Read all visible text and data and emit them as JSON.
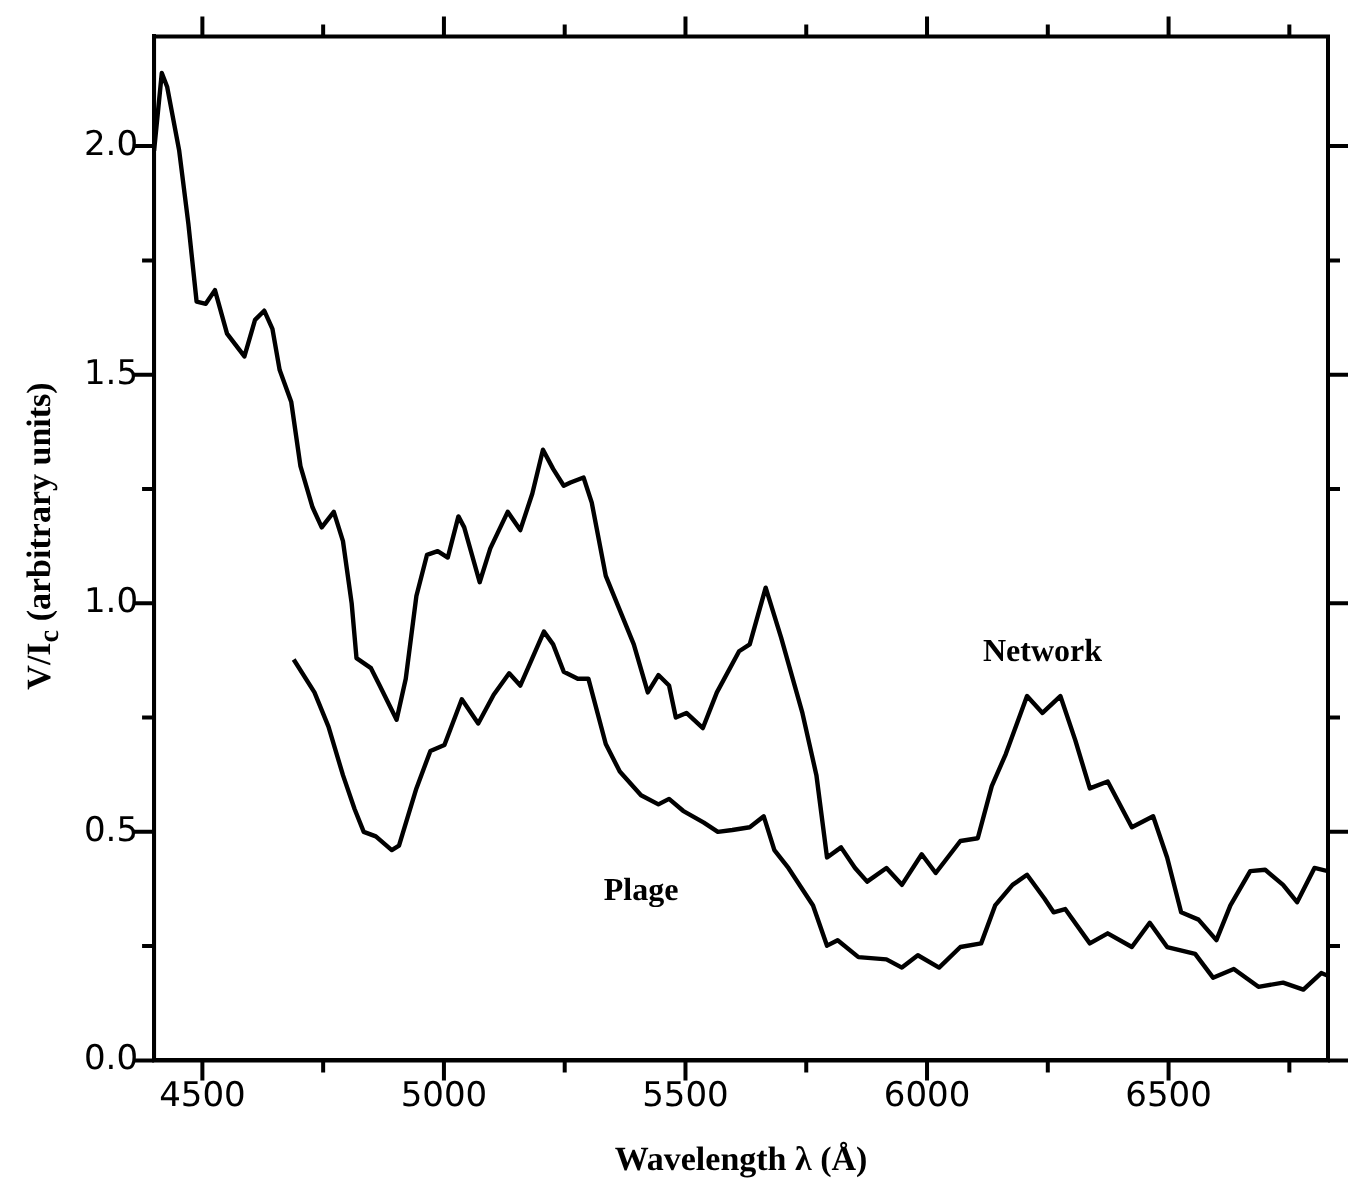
{
  "chart_data": {
    "type": "line",
    "xlabel": "Wavelength λ (Å)",
    "ylabel": "V/I$_{c}$ (arbitrary units)",
    "xlim": [
      4400,
      6830
    ],
    "ylim": [
      0,
      2.24
    ],
    "xticks": [
      4500,
      {
        "value": 4750,
        "label": null
      },
      5000,
      {
        "value": 5250,
        "label": null
      },
      5500,
      {
        "value": 5750,
        "label": null
      },
      6000,
      {
        "value": 6250,
        "label": null
      },
      6500,
      {
        "value": 6750,
        "label": null
      }
    ],
    "yticks": [
      {
        "value": 0,
        "label": "0.0"
      },
      {
        "value": 0.25,
        "label": null
      },
      {
        "value": 0.5,
        "label": "0.5"
      },
      {
        "value": 0.75,
        "label": null
      },
      {
        "value": 1,
        "label": "1.0"
      },
      {
        "value": 1.25,
        "label": null
      },
      {
        "value": 1.5,
        "label": "1.5"
      },
      {
        "value": 1.75,
        "label": null
      },
      {
        "value": 2,
        "label": "2.0"
      }
    ],
    "grid": false,
    "legend": false,
    "marker": "none",
    "line_style": "solid",
    "series": [
      {
        "name": "Network",
        "color": "#000000",
        "x": [
          4400,
          4416,
          4427,
          4452,
          4471,
          4488,
          4507,
          4526,
          4551,
          4587,
          4609,
          4628,
          4645,
          4660,
          4684,
          4703,
          4728,
          4747,
          4772,
          4791,
          4809,
          4819,
          4849,
          4867,
          4902,
          4921,
          4943,
          4965,
          4987,
          5008,
          5030,
          5042,
          5074,
          5096,
          5114,
          5132,
          5158,
          5183,
          5205,
          5226,
          5248,
          5262,
          5289,
          5306,
          5335,
          5364,
          5393,
          5422,
          5444,
          5466,
          5480,
          5502,
          5536,
          5565,
          5611,
          5633,
          5666,
          5698,
          5742,
          5771,
          5793,
          5822,
          5851,
          5876,
          5916,
          5948,
          5989,
          6018,
          6069,
          6105,
          6134,
          6163,
          6207,
          6239,
          6276,
          6307,
          6337,
          6374,
          6424,
          6468,
          6497,
          6526,
          6562,
          6599,
          6628,
          6669,
          6700,
          6737,
          6766,
          6802,
          6830
        ],
        "values": [
          1.99,
          2.16,
          2.13,
          1.99,
          1.83,
          1.66,
          1.655,
          1.685,
          1.59,
          1.54,
          1.62,
          1.64,
          1.6,
          1.51,
          1.44,
          1.3,
          1.21,
          1.166,
          1.2,
          1.136,
          1.0,
          0.88,
          0.858,
          0.82,
          0.745,
          0.835,
          1.016,
          1.106,
          1.114,
          1.1,
          1.19,
          1.166,
          1.046,
          1.12,
          1.16,
          1.2,
          1.16,
          1.24,
          1.336,
          1.294,
          1.257,
          1.264,
          1.275,
          1.22,
          1.06,
          0.985,
          0.91,
          0.805,
          0.843,
          0.82,
          0.75,
          0.76,
          0.727,
          0.805,
          0.895,
          0.91,
          1.034,
          0.925,
          0.76,
          0.624,
          0.444,
          0.466,
          0.421,
          0.391,
          0.421,
          0.384,
          0.451,
          0.41,
          0.48,
          0.486,
          0.6,
          0.67,
          0.797,
          0.76,
          0.797,
          0.7,
          0.595,
          0.61,
          0.51,
          0.534,
          0.444,
          0.324,
          0.308,
          0.263,
          0.339,
          0.414,
          0.417,
          0.384,
          0.346,
          0.421,
          0.414
        ]
      },
      {
        "name": "Plage",
        "color": "#000000",
        "x": [
          4689,
          4732,
          4761,
          4791,
          4815,
          4834,
          4859,
          4892,
          4907,
          4943,
          4972,
          5001,
          5037,
          5071,
          5103,
          5135,
          5158,
          5183,
          5207,
          5226,
          5248,
          5277,
          5299,
          5335,
          5364,
          5408,
          5444,
          5466,
          5495,
          5538,
          5567,
          5597,
          5633,
          5662,
          5684,
          5713,
          5764,
          5793,
          5815,
          5858,
          5916,
          5948,
          5981,
          6025,
          6069,
          6112,
          6141,
          6177,
          6207,
          6243,
          6262,
          6286,
          6337,
          6374,
          6424,
          6461,
          6497,
          6555,
          6592,
          6635,
          6686,
          6737,
          6779,
          6816,
          6830
        ],
        "values": [
          0.877,
          0.805,
          0.73,
          0.624,
          0.55,
          0.5,
          0.49,
          0.46,
          0.47,
          0.595,
          0.677,
          0.69,
          0.79,
          0.737,
          0.8,
          0.847,
          0.82,
          0.88,
          0.938,
          0.91,
          0.85,
          0.835,
          0.835,
          0.692,
          0.632,
          0.58,
          0.56,
          0.572,
          0.546,
          0.52,
          0.5,
          0.504,
          0.51,
          0.534,
          0.46,
          0.421,
          0.339,
          0.251,
          0.263,
          0.226,
          0.221,
          0.203,
          0.23,
          0.203,
          0.248,
          0.256,
          0.339,
          0.384,
          0.406,
          0.354,
          0.324,
          0.331,
          0.256,
          0.278,
          0.248,
          0.301,
          0.248,
          0.233,
          0.181,
          0.2,
          0.161,
          0.17,
          0.155,
          0.191,
          0.185
        ]
      }
    ]
  }
}
